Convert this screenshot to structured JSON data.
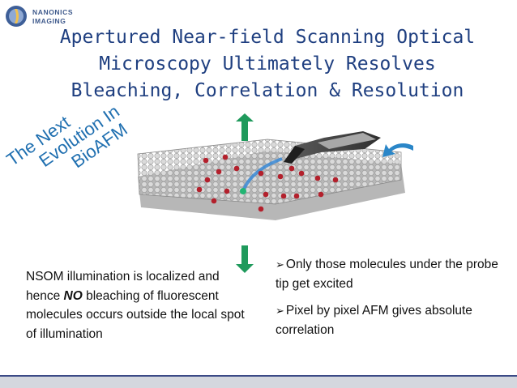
{
  "logo": {
    "line1": "NANONICS",
    "line2": "IMAGING"
  },
  "title": {
    "line1": "Apertured Near-field Scanning Optical",
    "line2": "Microscopy Ultimately Resolves",
    "line3": "Bleaching, Correlation & Resolution"
  },
  "rotated_text": {
    "line1": "The Next",
    "line2": "Evolution In",
    "line3": "BioAFM"
  },
  "left_paragraph": {
    "before": "NSOM illumination is localized and hence ",
    "emphasis": "NO",
    "after": " bleaching of fluorescent molecules occurs outside the local spot of illumination"
  },
  "bullets": [
    {
      "mark": "➢",
      "text": "Only those molecules under the probe tip get excited"
    },
    {
      "mark": "➢",
      "text": "Pixel by pixel AFM gives absolute correlation"
    }
  ],
  "colors": {
    "title": "#1f3f80",
    "rotated": "#1f6fb0",
    "molecule": "#b3202c",
    "arrow_green": "#1f9a5c",
    "arrow_blue": "#2a86c8"
  }
}
